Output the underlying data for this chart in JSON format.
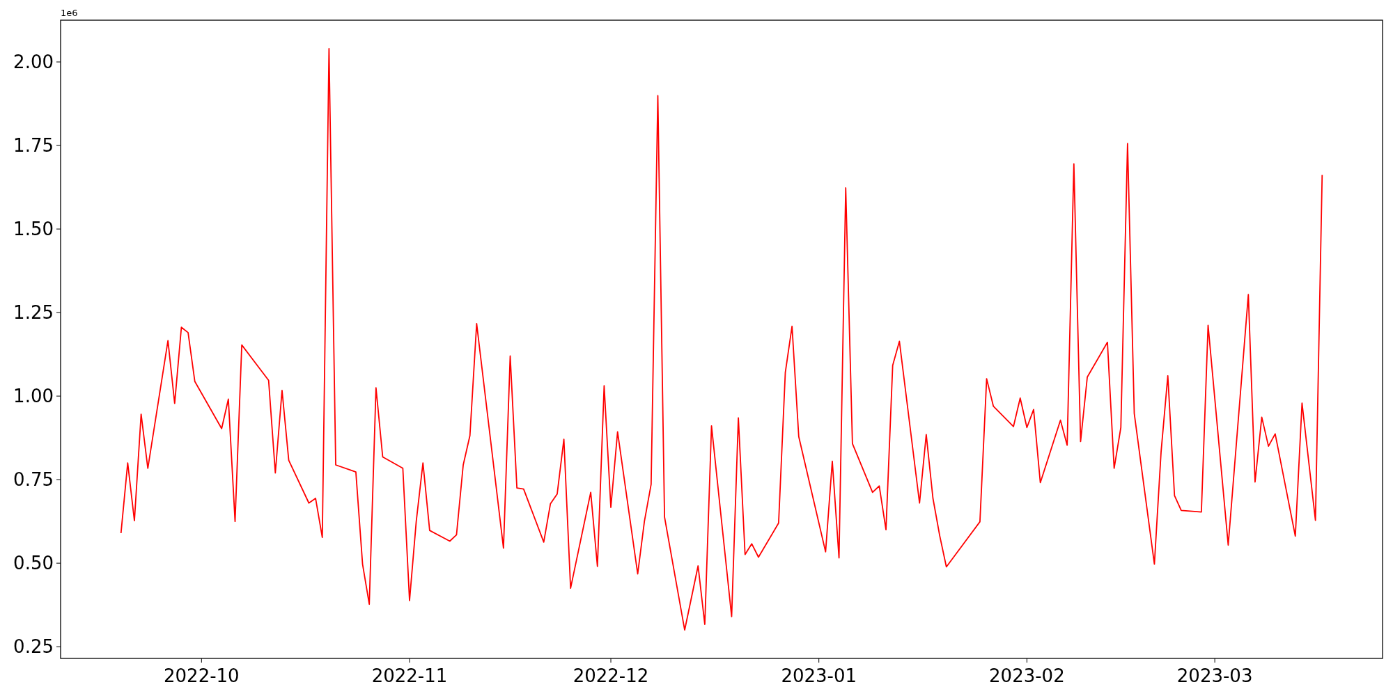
{
  "chart_data": {
    "type": "line",
    "annotations": [
      "1e6"
    ],
    "x": [
      "2022-09-19",
      "2022-09-20",
      "2022-09-21",
      "2022-09-22",
      "2022-09-23",
      "2022-09-26",
      "2022-09-27",
      "2022-09-28",
      "2022-09-29",
      "2022-09-30",
      "2022-10-04",
      "2022-10-05",
      "2022-10-06",
      "2022-10-07",
      "2022-10-11",
      "2022-10-12",
      "2022-10-13",
      "2022-10-14",
      "2022-10-17",
      "2022-10-18",
      "2022-10-19",
      "2022-10-20",
      "2022-10-21",
      "2022-10-24",
      "2022-10-25",
      "2022-10-26",
      "2022-10-27",
      "2022-10-28",
      "2022-10-31",
      "2022-11-01",
      "2022-11-02",
      "2022-11-03",
      "2022-11-04",
      "2022-11-07",
      "2022-11-08",
      "2022-11-09",
      "2022-11-10",
      "2022-11-11",
      "2022-11-15",
      "2022-11-16",
      "2022-11-17",
      "2022-11-18",
      "2022-11-21",
      "2022-11-22",
      "2022-11-23",
      "2022-11-24",
      "2022-11-25",
      "2022-11-28",
      "2022-11-29",
      "2022-11-30",
      "2022-12-01",
      "2022-12-02",
      "2022-12-05",
      "2022-12-06",
      "2022-12-07",
      "2022-12-08",
      "2022-12-09",
      "2022-12-12",
      "2022-12-14",
      "2022-12-15",
      "2022-12-16",
      "2022-12-19",
      "2022-12-20",
      "2022-12-21",
      "2022-12-22",
      "2022-12-23",
      "2022-12-26",
      "2022-12-27",
      "2022-12-28",
      "2022-12-29",
      "2023-01-02",
      "2023-01-03",
      "2023-01-04",
      "2023-01-05",
      "2023-01-06",
      "2023-01-09",
      "2023-01-10",
      "2023-01-11",
      "2023-01-12",
      "2023-01-13",
      "2023-01-16",
      "2023-01-17",
      "2023-01-18",
      "2023-01-19",
      "2023-01-20",
      "2023-01-25",
      "2023-01-26",
      "2023-01-27",
      "2023-01-30",
      "2023-01-31",
      "2023-02-01",
      "2023-02-02",
      "2023-02-03",
      "2023-02-06",
      "2023-02-07",
      "2023-02-08",
      "2023-02-09",
      "2023-02-10",
      "2023-02-13",
      "2023-02-14",
      "2023-02-15",
      "2023-02-16",
      "2023-02-17",
      "2023-02-20",
      "2023-02-21",
      "2023-02-22",
      "2023-02-23",
      "2023-02-24",
      "2023-02-27",
      "2023-02-28",
      "2023-03-03",
      "2023-03-06",
      "2023-03-07",
      "2023-03-08",
      "2023-03-09",
      "2023-03-10",
      "2023-03-13",
      "2023-03-14",
      "2023-03-16",
      "2023-03-17"
    ],
    "series": [
      {
        "color": "#ff0000",
        "values": [
          0.59,
          0.8,
          0.627,
          0.946,
          0.784,
          1.166,
          0.978,
          1.206,
          1.19,
          1.044,
          0.903,
          0.991,
          0.625,
          1.153,
          1.047,
          0.77,
          1.017,
          0.808,
          0.68,
          0.694,
          0.577,
          2.04,
          0.794,
          0.773,
          0.497,
          0.377,
          1.025,
          0.818,
          0.784,
          0.388,
          0.625,
          0.8,
          0.598,
          0.566,
          0.585,
          0.794,
          0.882,
          1.217,
          0.545,
          1.12,
          0.725,
          0.722,
          0.563,
          0.678,
          0.707,
          0.871,
          0.425,
          0.712,
          0.49,
          1.031,
          0.667,
          0.893,
          0.468,
          0.625,
          0.736,
          1.899,
          0.638,
          0.3,
          0.492,
          0.317,
          0.911,
          0.34,
          0.935,
          0.526,
          0.558,
          0.518,
          0.62,
          1.071,
          1.209,
          0.879,
          0.534,
          0.805,
          0.516,
          1.623,
          0.858,
          0.712,
          0.731,
          0.6,
          1.092,
          1.164,
          0.68,
          0.885,
          0.694,
          0.583,
          0.489,
          0.624,
          1.052,
          0.97,
          0.909,
          0.994,
          0.906,
          0.96,
          0.741,
          0.928,
          0.853,
          1.695,
          0.864,
          1.057,
          1.161,
          0.784,
          0.906,
          1.756,
          0.948,
          0.497,
          0.834,
          1.061,
          0.702,
          0.658,
          0.653,
          1.212,
          0.554,
          1.304,
          0.743,
          0.937,
          0.85,
          0.887,
          0.581,
          0.979,
          0.628,
          1.662
        ]
      }
    ],
    "xlim": [
      "2022-09-10",
      "2023-03-26"
    ],
    "ylim": [
      0.215,
      2.125
    ],
    "xticks": [
      {
        "value": "2022-10-01",
        "label": "2022-10"
      },
      {
        "value": "2022-11-01",
        "label": "2022-11"
      },
      {
        "value": "2022-12-01",
        "label": "2022-12"
      },
      {
        "value": "2023-01-01",
        "label": "2023-01"
      },
      {
        "value": "2023-02-01",
        "label": "2023-02"
      },
      {
        "value": "2023-03-01",
        "label": "2023-03"
      }
    ],
    "yticks": [
      {
        "value": 0.25,
        "label": "0.25"
      },
      {
        "value": 0.5,
        "label": "0.50"
      },
      {
        "value": 0.75,
        "label": "0.75"
      },
      {
        "value": 1,
        "label": "1.00"
      },
      {
        "value": 1.25,
        "label": "1.25"
      },
      {
        "value": 1.5,
        "label": "1.50"
      },
      {
        "value": 1.75,
        "label": "1.75"
      },
      {
        "value": 2,
        "label": "2.00"
      }
    ],
    "line_style": "solid"
  }
}
